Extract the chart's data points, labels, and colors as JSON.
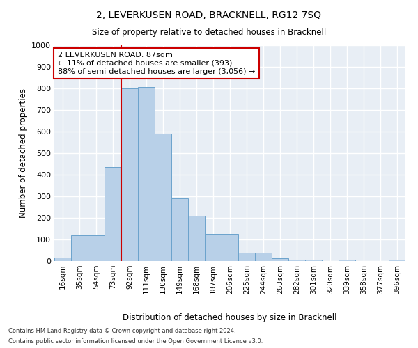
{
  "title": "2, LEVERKUSEN ROAD, BRACKNELL, RG12 7SQ",
  "subtitle": "Size of property relative to detached houses in Bracknell",
  "xlabel": "Distribution of detached houses by size in Bracknell",
  "ylabel": "Number of detached properties",
  "bar_color": "#b8d0e8",
  "bar_edge_color": "#6ba3cc",
  "background_color": "#e8eef5",
  "grid_color": "#ffffff",
  "categories": [
    "16sqm",
    "35sqm",
    "54sqm",
    "73sqm",
    "92sqm",
    "111sqm",
    "130sqm",
    "149sqm",
    "168sqm",
    "187sqm",
    "206sqm",
    "225sqm",
    "244sqm",
    "263sqm",
    "282sqm",
    "301sqm",
    "320sqm",
    "339sqm",
    "358sqm",
    "377sqm",
    "396sqm"
  ],
  "values": [
    15,
    120,
    120,
    435,
    800,
    805,
    590,
    290,
    210,
    125,
    125,
    40,
    40,
    13,
    8,
    8,
    0,
    8,
    0,
    0,
    8
  ],
  "ylim": [
    0,
    1000
  ],
  "yticks": [
    0,
    100,
    200,
    300,
    400,
    500,
    600,
    700,
    800,
    900,
    1000
  ],
  "property_line_index": 4,
  "annotation_text": "2 LEVERKUSEN ROAD: 87sqm\n← 11% of detached houses are smaller (393)\n88% of semi-detached houses are larger (3,056) →",
  "annotation_box_color": "#ffffff",
  "annotation_border_color": "#cc0000",
  "vline_color": "#cc0000",
  "footer_line1": "Contains HM Land Registry data © Crown copyright and database right 2024.",
  "footer_line2": "Contains public sector information licensed under the Open Government Licence v3.0."
}
